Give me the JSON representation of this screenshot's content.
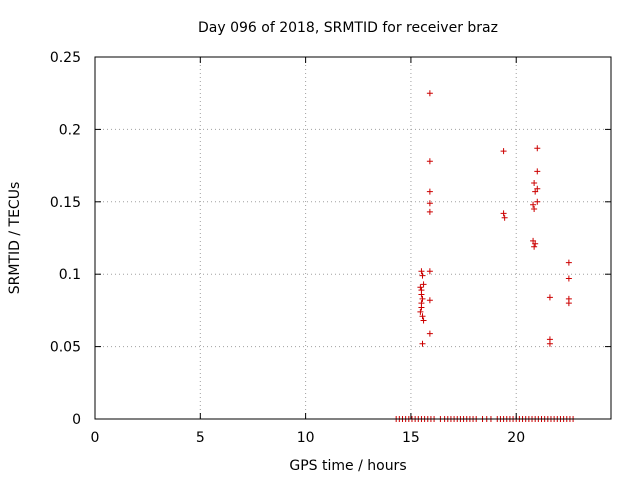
{
  "chart_data": {
    "type": "scatter",
    "title": "Day 096 of 2018, SRMTID for receiver braz",
    "xlabel": "GPS time / hours",
    "ylabel": "SRMTID / TECUs",
    "xlim": [
      0,
      24.5
    ],
    "ylim": [
      0,
      0.25
    ],
    "xticks": [
      0,
      5,
      10,
      15,
      20
    ],
    "xtick_labels": [
      "0",
      "5",
      "10",
      "15",
      "20"
    ],
    "yticks": [
      0,
      0.05,
      0.1,
      0.15,
      0.2,
      0.25
    ],
    "ytick_labels": [
      "0",
      "0.05",
      "0.1",
      "0.15",
      "0.2",
      "0.25"
    ],
    "grid": true,
    "marker": "+",
    "color": "#cc0000",
    "series": [
      {
        "name": "SRMTID",
        "points": [
          [
            15.9,
            0.225
          ],
          [
            15.9,
            0.178
          ],
          [
            15.9,
            0.157
          ],
          [
            15.9,
            0.149
          ],
          [
            15.9,
            0.143
          ],
          [
            15.9,
            0.102
          ],
          [
            15.9,
            0.082
          ],
          [
            15.9,
            0.059
          ],
          [
            15.5,
            0.102
          ],
          [
            15.55,
            0.099
          ],
          [
            15.6,
            0.093
          ],
          [
            15.45,
            0.091
          ],
          [
            15.5,
            0.089
          ],
          [
            15.5,
            0.086
          ],
          [
            15.55,
            0.083
          ],
          [
            15.5,
            0.08
          ],
          [
            15.5,
            0.077
          ],
          [
            15.45,
            0.074
          ],
          [
            15.55,
            0.071
          ],
          [
            15.6,
            0.068
          ],
          [
            15.55,
            0.052
          ],
          [
            19.4,
            0.185
          ],
          [
            19.4,
            0.142
          ],
          [
            19.45,
            0.139
          ],
          [
            21.0,
            0.187
          ],
          [
            21.0,
            0.171
          ],
          [
            20.85,
            0.163
          ],
          [
            21.0,
            0.159
          ],
          [
            20.9,
            0.157
          ],
          [
            21.0,
            0.15
          ],
          [
            20.8,
            0.148
          ],
          [
            20.85,
            0.145
          ],
          [
            20.8,
            0.123
          ],
          [
            20.9,
            0.121
          ],
          [
            20.85,
            0.119
          ],
          [
            22.5,
            0.108
          ],
          [
            22.5,
            0.097
          ],
          [
            21.6,
            0.084
          ],
          [
            22.5,
            0.083
          ],
          [
            22.5,
            0.08
          ],
          [
            21.6,
            0.055
          ],
          [
            21.6,
            0.052
          ],
          [
            14.3,
            0
          ],
          [
            14.45,
            0
          ],
          [
            14.6,
            0
          ],
          [
            14.75,
            0
          ],
          [
            14.9,
            0
          ],
          [
            15.05,
            0
          ],
          [
            15.2,
            0
          ],
          [
            15.35,
            0
          ],
          [
            15.5,
            0
          ],
          [
            15.65,
            0
          ],
          [
            15.8,
            0
          ],
          [
            15.95,
            0
          ],
          [
            16.1,
            0
          ],
          [
            16.4,
            0
          ],
          [
            16.6,
            0
          ],
          [
            16.75,
            0
          ],
          [
            16.9,
            0
          ],
          [
            17.05,
            0
          ],
          [
            17.2,
            0
          ],
          [
            17.35,
            0
          ],
          [
            17.5,
            0
          ],
          [
            17.65,
            0
          ],
          [
            17.8,
            0
          ],
          [
            17.95,
            0
          ],
          [
            18.1,
            0
          ],
          [
            18.4,
            0
          ],
          [
            18.6,
            0
          ],
          [
            18.8,
            0
          ],
          [
            19.1,
            0
          ],
          [
            19.25,
            0
          ],
          [
            19.4,
            0
          ],
          [
            19.55,
            0
          ],
          [
            19.7,
            0
          ],
          [
            19.85,
            0
          ],
          [
            20.0,
            0
          ],
          [
            20.15,
            0
          ],
          [
            20.3,
            0
          ],
          [
            20.45,
            0
          ],
          [
            20.6,
            0
          ],
          [
            20.75,
            0
          ],
          [
            20.9,
            0
          ],
          [
            21.05,
            0
          ],
          [
            21.2,
            0
          ],
          [
            21.35,
            0
          ],
          [
            21.5,
            0
          ],
          [
            21.65,
            0
          ],
          [
            21.8,
            0
          ],
          [
            21.95,
            0
          ],
          [
            22.1,
            0
          ],
          [
            22.25,
            0
          ],
          [
            22.4,
            0
          ],
          [
            22.55,
            0
          ],
          [
            22.7,
            0
          ]
        ]
      }
    ]
  }
}
